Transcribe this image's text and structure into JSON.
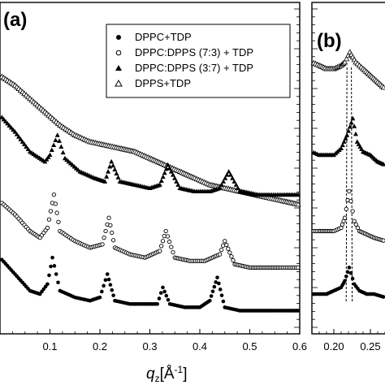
{
  "panels": {
    "a": {
      "label": "(a)"
    },
    "b": {
      "label": "(b)"
    }
  },
  "legend": {
    "items": [
      {
        "marker": "filled-circle",
        "label": "DPPC+TDP"
      },
      {
        "marker": "open-circle",
        "label": "DPPC:DPPS (7:3) + TDP"
      },
      {
        "marker": "filled-triangle",
        "label": "DPPC:DPPS (3:7) + TDP"
      },
      {
        "marker": "open-triangle",
        "label": "DPPS+TDP"
      }
    ]
  },
  "chart_data": [
    {
      "panel": "(a)",
      "type": "scatter",
      "xlabel": "q_z[Å^-1]",
      "xlim": [
        0.0,
        0.6
      ],
      "x_ticks": [
        "0.1",
        "0.2",
        "0.3",
        "0.4",
        "0.5",
        "0.6"
      ],
      "y_ticks_labeled": false,
      "legend_position": "top-right",
      "grid": false,
      "series": [
        {
          "name": "DPPS+TDP",
          "marker": "open-triangle",
          "x": [
            0.0,
            0.03,
            0.06,
            0.09,
            0.12,
            0.15,
            0.18,
            0.21,
            0.24,
            0.27,
            0.3,
            0.33,
            0.36,
            0.39,
            0.42,
            0.45,
            0.48,
            0.51,
            0.54,
            0.57,
            0.6
          ],
          "y": [
            0.78,
            0.75,
            0.71,
            0.67,
            0.63,
            0.6,
            0.58,
            0.57,
            0.56,
            0.55,
            0.53,
            0.51,
            0.49,
            0.47,
            0.45,
            0.44,
            0.43,
            0.42,
            0.41,
            0.4,
            0.39
          ]
        },
        {
          "name": "DPPC:DPPS (3:7) + TDP",
          "marker": "filled-triangle",
          "x": [
            0.0,
            0.03,
            0.06,
            0.09,
            0.1,
            0.115,
            0.13,
            0.16,
            0.19,
            0.21,
            0.223,
            0.24,
            0.27,
            0.3,
            0.32,
            0.336,
            0.36,
            0.39,
            0.42,
            0.44,
            0.458,
            0.48,
            0.51,
            0.54,
            0.57,
            0.6
          ],
          "y": [
            0.66,
            0.61,
            0.55,
            0.52,
            0.54,
            0.6,
            0.53,
            0.49,
            0.47,
            0.46,
            0.52,
            0.46,
            0.45,
            0.44,
            0.45,
            0.51,
            0.44,
            0.43,
            0.43,
            0.44,
            0.49,
            0.43,
            0.42,
            0.42,
            0.42,
            0.42
          ]
        },
        {
          "name": "DPPC:DPPS (7:3) + TDP",
          "marker": "open-circle",
          "x": [
            0.0,
            0.03,
            0.06,
            0.08,
            0.095,
            0.108,
            0.12,
            0.15,
            0.18,
            0.205,
            0.218,
            0.23,
            0.26,
            0.29,
            0.32,
            0.332,
            0.35,
            0.38,
            0.41,
            0.44,
            0.45,
            0.47,
            0.5,
            0.53,
            0.56,
            0.6
          ],
          "y": [
            0.4,
            0.36,
            0.31,
            0.29,
            0.32,
            0.42,
            0.31,
            0.28,
            0.26,
            0.27,
            0.35,
            0.26,
            0.24,
            0.23,
            0.25,
            0.31,
            0.23,
            0.22,
            0.22,
            0.24,
            0.28,
            0.21,
            0.2,
            0.2,
            0.2,
            0.2
          ]
        },
        {
          "name": "DPPC+TDP",
          "marker": "filled-circle",
          "x": [
            0.0,
            0.03,
            0.06,
            0.08,
            0.095,
            0.105,
            0.12,
            0.15,
            0.18,
            0.2,
            0.215,
            0.23,
            0.26,
            0.29,
            0.315,
            0.326,
            0.34,
            0.37,
            0.4,
            0.42,
            0.435,
            0.45,
            0.48,
            0.51,
            0.54,
            0.57,
            0.6
          ],
          "y": [
            0.23,
            0.18,
            0.13,
            0.12,
            0.15,
            0.23,
            0.13,
            0.11,
            0.1,
            0.11,
            0.18,
            0.1,
            0.09,
            0.09,
            0.09,
            0.14,
            0.09,
            0.08,
            0.08,
            0.1,
            0.17,
            0.08,
            0.07,
            0.07,
            0.07,
            0.07,
            0.07
          ]
        }
      ]
    },
    {
      "panel": "(b)",
      "type": "scatter",
      "xlabel": "",
      "xlim": [
        0.17,
        0.27
      ],
      "x_ticks": [
        "0.20",
        "0.25"
      ],
      "y_ticks_labeled": false,
      "grid": false,
      "series": [
        {
          "name": "DPPS+TDP",
          "marker": "open-triangle",
          "x": [
            0.17,
            0.18,
            0.19,
            0.2,
            0.21,
            0.215,
            0.222,
            0.23,
            0.24,
            0.25,
            0.26,
            0.27
          ],
          "y": [
            0.82,
            0.81,
            0.8,
            0.8,
            0.81,
            0.82,
            0.85,
            0.82,
            0.8,
            0.78,
            0.76,
            0.74
          ]
        },
        {
          "name": "DPPC:DPPS (3:7) + TDP",
          "marker": "filled-triangle",
          "x": [
            0.17,
            0.18,
            0.19,
            0.2,
            0.21,
            0.218,
            0.226,
            0.232,
            0.24,
            0.25,
            0.26,
            0.27
          ],
          "y": [
            0.55,
            0.54,
            0.54,
            0.54,
            0.56,
            0.6,
            0.65,
            0.58,
            0.55,
            0.54,
            0.52,
            0.51
          ]
        },
        {
          "name": "DPPC:DPPS (7:3) + TDP",
          "marker": "open-circle",
          "x": [
            0.17,
            0.18,
            0.19,
            0.2,
            0.21,
            0.215,
            0.221,
            0.228,
            0.235,
            0.245,
            0.255,
            0.27
          ],
          "y": [
            0.31,
            0.31,
            0.31,
            0.31,
            0.32,
            0.35,
            0.43,
            0.34,
            0.31,
            0.3,
            0.29,
            0.28
          ]
        },
        {
          "name": "DPPC+TDP",
          "marker": "filled-circle",
          "x": [
            0.17,
            0.18,
            0.19,
            0.2,
            0.21,
            0.215,
            0.221,
            0.228,
            0.235,
            0.245,
            0.255,
            0.27
          ],
          "y": [
            0.12,
            0.12,
            0.12,
            0.13,
            0.14,
            0.16,
            0.2,
            0.15,
            0.13,
            0.12,
            0.12,
            0.11
          ]
        }
      ],
      "vertical_guides_x": [
        0.218,
        0.224
      ]
    }
  ]
}
